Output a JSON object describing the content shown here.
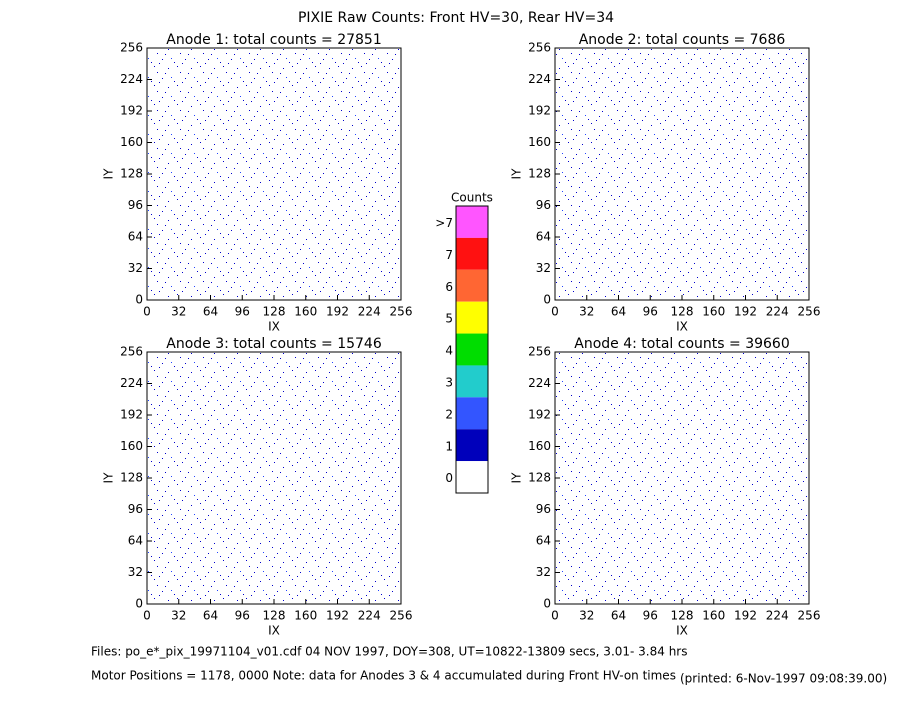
{
  "title": "PIXIE Raw Counts:  Front HV=30, Rear HV=34",
  "chart_data": [
    {
      "type": "heatmap",
      "title": "Anode 1: total counts = 27851",
      "xlabel": "IX",
      "ylabel": "IY",
      "xlim": [
        0,
        256
      ],
      "xticks": [
        0,
        32,
        64,
        96,
        128,
        160,
        192,
        224,
        256
      ],
      "ylim": [
        0,
        256
      ],
      "yticks": [
        0,
        32,
        64,
        96,
        128,
        160,
        192,
        224,
        256
      ]
    },
    {
      "type": "heatmap",
      "title": "Anode 2: total counts = 7686",
      "xlabel": "IX",
      "ylabel": "IY",
      "xlim": [
        0,
        256
      ],
      "xticks": [
        0,
        32,
        64,
        96,
        128,
        160,
        192,
        224,
        256
      ],
      "ylim": [
        0,
        256
      ],
      "yticks": [
        0,
        32,
        64,
        96,
        128,
        160,
        192,
        224,
        256
      ]
    },
    {
      "type": "heatmap",
      "title": "Anode 3: total counts = 15746",
      "xlabel": "IX",
      "ylabel": "IY",
      "xlim": [
        0,
        256
      ],
      "xticks": [
        0,
        32,
        64,
        96,
        128,
        160,
        192,
        224,
        256
      ],
      "ylim": [
        0,
        256
      ],
      "yticks": [
        0,
        32,
        64,
        96,
        128,
        160,
        192,
        224,
        256
      ]
    },
    {
      "type": "heatmap",
      "title": "Anode 4: total counts = 39660",
      "xlabel": "IX",
      "ylabel": "IY",
      "xlim": [
        0,
        256
      ],
      "xticks": [
        0,
        32,
        64,
        96,
        128,
        160,
        192,
        224,
        256
      ],
      "ylim": [
        0,
        256
      ],
      "yticks": [
        0,
        32,
        64,
        96,
        128,
        160,
        192,
        224,
        256
      ]
    }
  ],
  "colorbar": {
    "title": "Counts",
    "labels": [
      ">7",
      "7",
      "6",
      "5",
      "4",
      "3",
      "2",
      "1",
      "0"
    ],
    "colors": [
      "#ff55ff",
      "#ff1111",
      "#ff6633",
      "#ffff00",
      "#00dd00",
      "#22cccc",
      "#3355ff",
      "#0000bb",
      "#ffffff"
    ]
  },
  "footer": {
    "files": "Files: po_e*_pix_19971104_v01.cdf    04 NOV 1997, DOY=308, UT=10822-13809 secs,  3.01- 3.84 hrs",
    "motor": "Motor Positions = 1178, 0000   Note: data for Anodes 3 & 4 accumulated during Front HV-on times",
    "printed": "(printed:  6-Nov-1997 09:08:39.00)"
  }
}
